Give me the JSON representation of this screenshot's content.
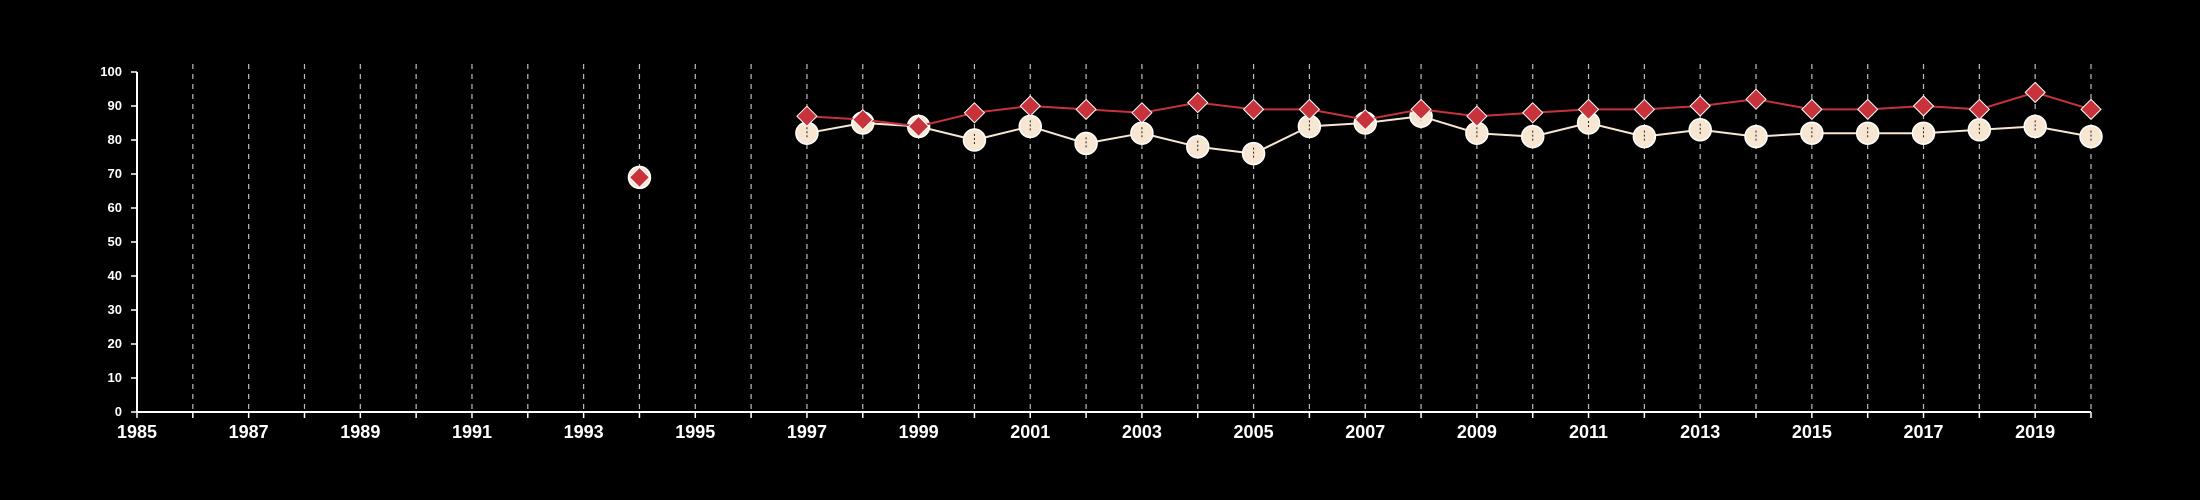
{
  "chart_data": {
    "type": "line",
    "xlim": [
      1985,
      2020
    ],
    "ylim": [
      0,
      100
    ],
    "y_ticks": [
      0,
      10,
      20,
      30,
      40,
      50,
      60,
      70,
      80,
      90,
      100
    ],
    "x_tick_labels": [
      "1985",
      "1987",
      "1989",
      "1991",
      "1993",
      "1995",
      "1997",
      "1999",
      "2001",
      "2003",
      "2005",
      "2007",
      "2009",
      "2011",
      "2013",
      "2015",
      "2017",
      "2019"
    ],
    "grid": "vertical dashed lines at every year",
    "legend": "none",
    "series": [
      {
        "marker": "circle",
        "color": "#f7e6d2",
        "points": [
          [
            1994,
            69
          ],
          [
            1997,
            82
          ],
          [
            1998,
            85
          ],
          [
            1999,
            84
          ],
          [
            2000,
            80
          ],
          [
            2001,
            84
          ],
          [
            2002,
            79
          ],
          [
            2003,
            82
          ],
          [
            2004,
            78
          ],
          [
            2005,
            76
          ],
          [
            2006,
            84
          ],
          [
            2007,
            85
          ],
          [
            2008,
            87
          ],
          [
            2009,
            82
          ],
          [
            2010,
            81
          ],
          [
            2011,
            85
          ],
          [
            2012,
            81
          ],
          [
            2013,
            83
          ],
          [
            2014,
            81
          ],
          [
            2015,
            82
          ],
          [
            2016,
            82
          ],
          [
            2017,
            82
          ],
          [
            2018,
            83
          ],
          [
            2019,
            84
          ],
          [
            2020,
            81
          ]
        ]
      },
      {
        "marker": "diamond",
        "color": "#c8323a",
        "points": [
          [
            1994,
            69
          ],
          [
            1997,
            87
          ],
          [
            1998,
            86
          ],
          [
            1999,
            84
          ],
          [
            2000,
            88
          ],
          [
            2001,
            90
          ],
          [
            2002,
            89
          ],
          [
            2003,
            88
          ],
          [
            2004,
            91
          ],
          [
            2005,
            89
          ],
          [
            2006,
            89
          ],
          [
            2007,
            86
          ],
          [
            2008,
            89
          ],
          [
            2009,
            87
          ],
          [
            2010,
            88
          ],
          [
            2011,
            89
          ],
          [
            2012,
            89
          ],
          [
            2013,
            90
          ],
          [
            2014,
            92
          ],
          [
            2015,
            89
          ],
          [
            2016,
            89
          ],
          [
            2017,
            90
          ],
          [
            2018,
            89
          ],
          [
            2019,
            94
          ],
          [
            2020,
            89
          ]
        ]
      }
    ]
  }
}
